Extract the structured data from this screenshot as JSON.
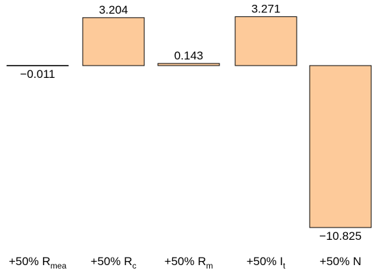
{
  "chart_data": {
    "type": "bar",
    "categories": [
      {
        "main": "+50% R",
        "sub": "mea"
      },
      {
        "main": "+50% R",
        "sub": "c"
      },
      {
        "main": "+50% R",
        "sub": "m"
      },
      {
        "main": "+50% I",
        "sub": "t"
      },
      {
        "main": "+50% N",
        "sub": ""
      }
    ],
    "values": [
      -0.011,
      3.204,
      0.143,
      3.271,
      -10.825
    ],
    "value_labels": [
      "−0.011",
      "3.204",
      "0.143",
      "3.271",
      "−10.825"
    ],
    "bar_color": "#FDCA9A",
    "bar_edge_color": "#000000",
    "ylim": [
      -10.825,
      3.271
    ],
    "grid": false,
    "legend": "none",
    "title": "",
    "xlabel": "",
    "ylabel": ""
  }
}
